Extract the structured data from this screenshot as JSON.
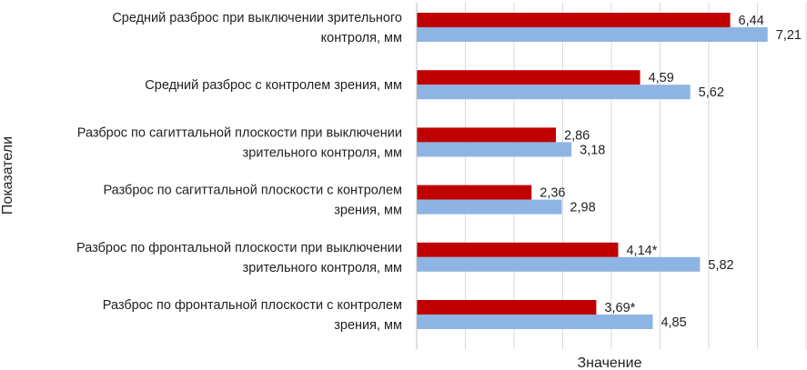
{
  "chart_data": {
    "type": "bar",
    "orientation": "horizontal",
    "categories": [
      [
        "Средний разброс при выключении зрительного",
        "контроля, мм"
      ],
      [
        "Средний разброс с контролем зрения, мм"
      ],
      [
        "Разброс по сагиттальной плоскости при выключении",
        "зрительного контроля, мм"
      ],
      [
        "Разброс по сагиттальной плоскости с контролем",
        "зрения, мм"
      ],
      [
        "Разброс по фронтальной плоскости при выключении",
        "зрительного контроля, мм"
      ],
      [
        "Разброс по фронтальной плоскости с контролем",
        "зрения, мм"
      ]
    ],
    "series": [
      {
        "color": "#C00000",
        "values": [
          6.44,
          4.59,
          2.86,
          2.36,
          4.14,
          3.69
        ],
        "labels": [
          "6,44",
          "4,59",
          "2,86",
          "2,36",
          "4,14*",
          "3,69*"
        ]
      },
      {
        "color": "#8EB4E3",
        "values": [
          7.21,
          5.62,
          3.18,
          2.98,
          5.82,
          4.85
        ],
        "labels": [
          "7,21",
          "5,62",
          "3,18",
          "2,98",
          "5,82",
          "4,85"
        ]
      }
    ],
    "xlabel": "Значение",
    "ylabel": "Показатели",
    "xlim": [
      0,
      8
    ],
    "grid": true,
    "gridline_color": "#D9D9D9",
    "legend": "none"
  }
}
